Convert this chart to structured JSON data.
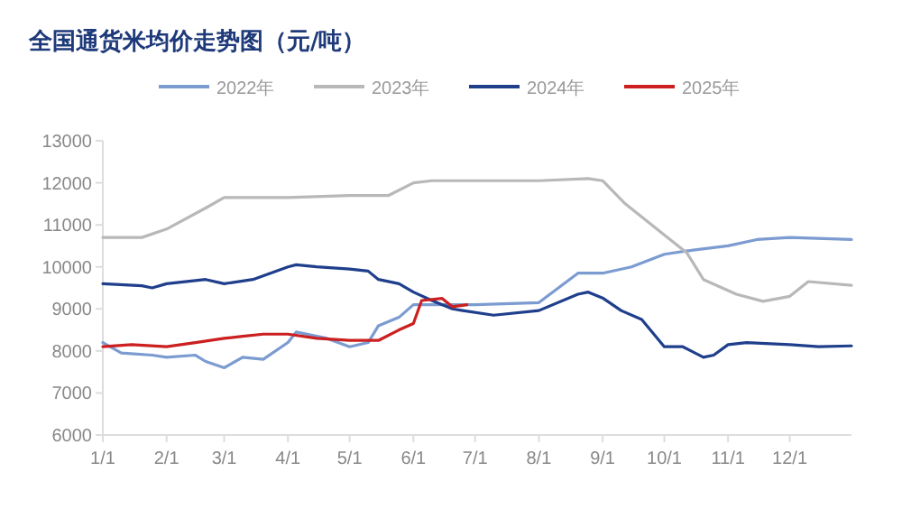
{
  "chart_data": {
    "type": "line",
    "title": "全国通货米均价走势图（元/吨）",
    "legend": "top",
    "grid": false,
    "xlim": [
      "--01-01",
      "--12-31"
    ],
    "xticks": [
      {
        "value": "--01-01",
        "label": "1/1"
      },
      {
        "value": "--02-01",
        "label": "2/1"
      },
      {
        "value": "--03-01",
        "label": "3/1"
      },
      {
        "value": "--04-01",
        "label": "4/1"
      },
      {
        "value": "--05-01",
        "label": "5/1"
      },
      {
        "value": "--06-01",
        "label": "6/1"
      },
      {
        "value": "--07-01",
        "label": "7/1"
      },
      {
        "value": "--08-01",
        "label": "8/1"
      },
      {
        "value": "--09-01",
        "label": "9/1"
      },
      {
        "value": "--10-01",
        "label": "10/1"
      },
      {
        "value": "--11-01",
        "label": "11/1"
      },
      {
        "value": "--12-01",
        "label": "12/1"
      }
    ],
    "ylim": [
      6000,
      13000
    ],
    "yticks": [
      6000,
      7000,
      8000,
      9000,
      10000,
      11000,
      12000,
      13000
    ],
    "series": [
      {
        "name": "2022年",
        "color": "#7b9bd1",
        "x": [
          "--01-01",
          "--01-10",
          "--01-25",
          "--02-01",
          "--02-15",
          "--02-20",
          "--03-01",
          "--03-10",
          "--03-20",
          "--04-01",
          "--04-05",
          "--04-20",
          "--05-01",
          "--05-10",
          "--05-15",
          "--05-25",
          "--06-01",
          "--06-20",
          "--07-01",
          "--08-01",
          "--08-20",
          "--09-01",
          "--09-15",
          "--10-01",
          "--10-15",
          "--11-01",
          "--11-15",
          "--12-01",
          "--12-31"
        ],
        "values": [
          8200,
          7950,
          7900,
          7850,
          7900,
          7750,
          7600,
          7850,
          7800,
          8200,
          8450,
          8300,
          8100,
          8200,
          8600,
          8800,
          9100,
          9100,
          9100,
          9150,
          9850,
          9850,
          10000,
          10300,
          10400,
          10500,
          10650,
          10700,
          10650
        ]
      },
      {
        "name": "2023年",
        "color": "#b8b8b8",
        "x": [
          "--01-01",
          "--01-20",
          "--02-01",
          "--02-20",
          "--03-01",
          "--04-01",
          "--05-01",
          "--05-20",
          "--06-01",
          "--06-10",
          "--08-01",
          "--08-25",
          "--09-01",
          "--09-12",
          "--10-12",
          "--10-20",
          "--11-05",
          "--11-18",
          "--12-01",
          "--12-10",
          "--12-31"
        ],
        "values": [
          10700,
          10700,
          10900,
          11400,
          11650,
          11650,
          11700,
          11700,
          12000,
          12050,
          12050,
          12100,
          12050,
          11500,
          10330,
          9700,
          9350,
          9180,
          9300,
          9650,
          9560
        ]
      },
      {
        "name": "2024年",
        "color": "#1f3f8c",
        "x": [
          "--01-01",
          "--01-20",
          "--01-25",
          "--02-01",
          "--02-20",
          "--03-01",
          "--03-15",
          "--04-01",
          "--04-05",
          "--04-15",
          "--05-01",
          "--05-10",
          "--05-15",
          "--05-25",
          "--06-01",
          "--06-10",
          "--06-20",
          "--06-25",
          "--07-10",
          "--08-01",
          "--08-20",
          "--08-25",
          "--09-01",
          "--09-10",
          "--09-20",
          "--10-01",
          "--10-10",
          "--10-20",
          "--10-25",
          "--11-01",
          "--11-10",
          "--12-01",
          "--12-15",
          "--12-31"
        ],
        "values": [
          9600,
          9550,
          9500,
          9600,
          9700,
          9600,
          9700,
          10000,
          10050,
          10000,
          9950,
          9900,
          9700,
          9600,
          9400,
          9200,
          9000,
          8960,
          8850,
          8960,
          9350,
          9400,
          9260,
          8960,
          8750,
          8100,
          8100,
          7850,
          7900,
          8150,
          8200,
          8150,
          8100,
          8120
        ]
      },
      {
        "name": "2025年",
        "color": "#cc1f1f",
        "x": [
          "--01-01",
          "--01-15",
          "--02-01",
          "--02-15",
          "--03-01",
          "--03-10",
          "--03-20",
          "--04-01",
          "--04-15",
          "--05-01",
          "--05-15",
          "--05-25",
          "--06-01",
          "--06-05",
          "--06-15",
          "--06-20",
          "--06-27"
        ],
        "values": [
          8100,
          8150,
          8100,
          8200,
          8300,
          8350,
          8400,
          8400,
          8300,
          8250,
          8250,
          8500,
          8650,
          9200,
          9250,
          9050,
          9100
        ]
      }
    ]
  }
}
